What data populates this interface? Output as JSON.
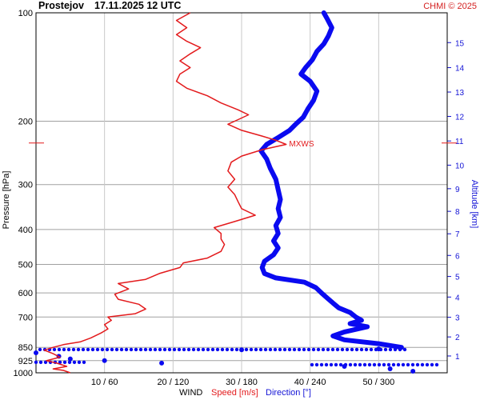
{
  "header": {
    "station": "Prostejov",
    "datetime": "17.11.2025 12 UTC",
    "copyright": "CHMI © 2025"
  },
  "colors": {
    "speed": "#e31a1c",
    "direction": "#0a0af0",
    "grid": "#c8c8c8",
    "text": "#000000"
  },
  "chart_data": {
    "type": "line",
    "x_axis": {
      "label_parts": [
        "WIND",
        "Speed [m/s]",
        "Direction [°]"
      ],
      "tick_labels": [
        "10 / 60",
        "20 / 120",
        "30 / 180",
        "40 / 240",
        "50 / 300"
      ],
      "speed_range": [
        0,
        60
      ],
      "direction_range": [
        0,
        360
      ]
    },
    "y_left": {
      "label": "Pressure [hPa]",
      "scale": "log",
      "range_hpa": [
        100,
        1000
      ],
      "ticks": [
        100,
        200,
        300,
        400,
        500,
        600,
        700,
        850,
        925,
        1000
      ],
      "tick_labels": [
        "100",
        "200",
        "300",
        "400",
        "500",
        "600",
        "700",
        "850",
        "925",
        "1000"
      ]
    },
    "y_right": {
      "label": "Altitude [km]",
      "tick_labels": [
        "1",
        "2",
        "3",
        "4",
        "5",
        "6",
        "7",
        "8",
        "9",
        "10",
        "11",
        "12",
        "13",
        "14",
        "15"
      ],
      "tick_pressures_hpa": [
        898,
        795,
        701,
        616,
        540,
        472,
        411,
        356,
        308,
        265,
        227,
        194,
        166,
        142,
        121
      ]
    },
    "annotation": {
      "text": "MXWS",
      "pressure_hpa": 230,
      "speed_ms": 36
    },
    "series": [
      {
        "name": "Speed [m/s]",
        "points": [
          {
            "p": 1000,
            "v": 5.0
          },
          {
            "p": 985,
            "v": 4.0
          },
          {
            "p": 975,
            "v": 2.5
          },
          {
            "p": 960,
            "v": 4.5
          },
          {
            "p": 940,
            "v": 3.0
          },
          {
            "p": 925,
            "v": 1.5
          },
          {
            "p": 905,
            "v": 3.5
          },
          {
            "p": 885,
            "v": 2.5
          },
          {
            "p": 865,
            "v": 1.2
          },
          {
            "p": 850,
            "v": 2.5
          },
          {
            "p": 835,
            "v": 4.0
          },
          {
            "p": 820,
            "v": 6.5
          },
          {
            "p": 800,
            "v": 8.0
          },
          {
            "p": 775,
            "v": 9.5
          },
          {
            "p": 755,
            "v": 10.5
          },
          {
            "p": 735,
            "v": 10.0
          },
          {
            "p": 715,
            "v": 11.0
          },
          {
            "p": 700,
            "v": 10.5
          },
          {
            "p": 685,
            "v": 14.5
          },
          {
            "p": 665,
            "v": 16.0
          },
          {
            "p": 645,
            "v": 15.0
          },
          {
            "p": 625,
            "v": 12.0
          },
          {
            "p": 605,
            "v": 11.5
          },
          {
            "p": 585,
            "v": 13.5
          },
          {
            "p": 565,
            "v": 12.0
          },
          {
            "p": 550,
            "v": 16.0
          },
          {
            "p": 530,
            "v": 18.0
          },
          {
            "p": 510,
            "v": 21.0
          },
          {
            "p": 495,
            "v": 21.5
          },
          {
            "p": 480,
            "v": 25.0
          },
          {
            "p": 460,
            "v": 27.0
          },
          {
            "p": 440,
            "v": 27.5
          },
          {
            "p": 425,
            "v": 27.0
          },
          {
            "p": 410,
            "v": 27.0
          },
          {
            "p": 395,
            "v": 26.0
          },
          {
            "p": 380,
            "v": 29.0
          },
          {
            "p": 365,
            "v": 32.0
          },
          {
            "p": 350,
            "v": 30.0
          },
          {
            "p": 335,
            "v": 29.5
          },
          {
            "p": 320,
            "v": 29.0
          },
          {
            "p": 305,
            "v": 28.0
          },
          {
            "p": 290,
            "v": 29.0
          },
          {
            "p": 275,
            "v": 28.0
          },
          {
            "p": 260,
            "v": 28.5
          },
          {
            "p": 250,
            "v": 30.0
          },
          {
            "p": 240,
            "v": 33.0
          },
          {
            "p": 232,
            "v": 36.5
          },
          {
            "p": 226,
            "v": 35.0
          },
          {
            "p": 220,
            "v": 33.0
          },
          {
            "p": 212,
            "v": 30.0
          },
          {
            "p": 204,
            "v": 28.0
          },
          {
            "p": 198,
            "v": 29.5
          },
          {
            "p": 192,
            "v": 31.0
          },
          {
            "p": 186,
            "v": 29.5
          },
          {
            "p": 178,
            "v": 27.0
          },
          {
            "p": 170,
            "v": 25.0
          },
          {
            "p": 162,
            "v": 22.0
          },
          {
            "p": 155,
            "v": 20.5
          },
          {
            "p": 148,
            "v": 21.0
          },
          {
            "p": 142,
            "v": 22.5
          },
          {
            "p": 136,
            "v": 21.0
          },
          {
            "p": 130,
            "v": 22.5
          },
          {
            "p": 125,
            "v": 24.0
          },
          {
            "p": 120,
            "v": 22.0
          },
          {
            "p": 115,
            "v": 20.5
          },
          {
            "p": 110,
            "v": 22.0
          },
          {
            "p": 105,
            "v": 20.5
          },
          {
            "p": 100,
            "v": 22.5
          }
        ]
      },
      {
        "name": "Direction [°]",
        "points": [
          {
            "p": 990,
            "d": 330
          },
          {
            "p": 975,
            "d": 310
          },
          {
            "p": 960,
            "d": 270
          },
          {
            "p": 940,
            "d": 110
          },
          {
            "p": 925,
            "d": 60
          },
          {
            "p": 915,
            "d": 30
          },
          {
            "p": 900,
            "d": 20
          },
          {
            "p": 880,
            "d": 0
          },
          {
            "p": 863,
            "d": 180
          },
          {
            "p": 858,
            "d": 300
          },
          {
            "p": 850,
            "d": 320
          },
          {
            "p": 830,
            "d": 300
          },
          {
            "p": 810,
            "d": 270
          },
          {
            "p": 790,
            "d": 260
          },
          {
            "p": 770,
            "d": 270
          },
          {
            "p": 745,
            "d": 290
          },
          {
            "p": 730,
            "d": 275
          },
          {
            "p": 715,
            "d": 285
          },
          {
            "p": 700,
            "d": 280
          },
          {
            "p": 680,
            "d": 275
          },
          {
            "p": 660,
            "d": 265
          },
          {
            "p": 640,
            "d": 260
          },
          {
            "p": 620,
            "d": 255
          },
          {
            "p": 600,
            "d": 250
          },
          {
            "p": 580,
            "d": 245
          },
          {
            "p": 560,
            "d": 235
          },
          {
            "p": 545,
            "d": 210
          },
          {
            "p": 530,
            "d": 200
          },
          {
            "p": 510,
            "d": 198
          },
          {
            "p": 490,
            "d": 200
          },
          {
            "p": 470,
            "d": 208
          },
          {
            "p": 450,
            "d": 212
          },
          {
            "p": 430,
            "d": 208
          },
          {
            "p": 410,
            "d": 212
          },
          {
            "p": 390,
            "d": 210
          },
          {
            "p": 370,
            "d": 214
          },
          {
            "p": 350,
            "d": 212
          },
          {
            "p": 330,
            "d": 214
          },
          {
            "p": 310,
            "d": 212
          },
          {
            "p": 290,
            "d": 210
          },
          {
            "p": 270,
            "d": 205
          },
          {
            "p": 255,
            "d": 202
          },
          {
            "p": 242,
            "d": 197
          },
          {
            "p": 232,
            "d": 202
          },
          {
            "p": 222,
            "d": 212
          },
          {
            "p": 212,
            "d": 222
          },
          {
            "p": 203,
            "d": 228
          },
          {
            "p": 195,
            "d": 234
          },
          {
            "p": 185,
            "d": 238
          },
          {
            "p": 175,
            "d": 243
          },
          {
            "p": 165,
            "d": 246
          },
          {
            "p": 155,
            "d": 240
          },
          {
            "p": 148,
            "d": 232
          },
          {
            "p": 142,
            "d": 236
          },
          {
            "p": 135,
            "d": 242
          },
          {
            "p": 128,
            "d": 246
          },
          {
            "p": 122,
            "d": 252
          },
          {
            "p": 116,
            "d": 256
          },
          {
            "p": 110,
            "d": 259
          },
          {
            "p": 104,
            "d": 255
          },
          {
            "p": 100,
            "d": 252
          }
        ]
      }
    ]
  }
}
